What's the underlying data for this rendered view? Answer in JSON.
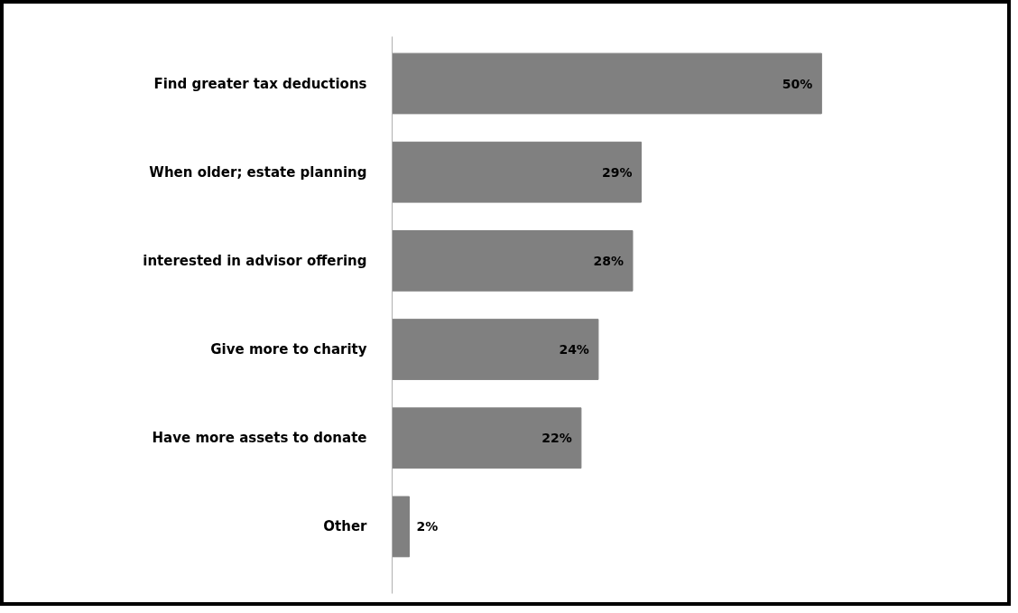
{
  "chart_data": {
    "type": "bar",
    "orientation": "horizontal",
    "categories": [
      "Find greater tax deductions",
      "When older; estate planning",
      "interested in advisor offering",
      "Give more to charity",
      "Have more assets to donate",
      "Other"
    ],
    "values": [
      50,
      29,
      28,
      24,
      22,
      2
    ],
    "value_labels": [
      "50%",
      "29%",
      "28%",
      "24%",
      "22%",
      "2%"
    ],
    "color": "#808080",
    "tick_labels": "y"
  }
}
